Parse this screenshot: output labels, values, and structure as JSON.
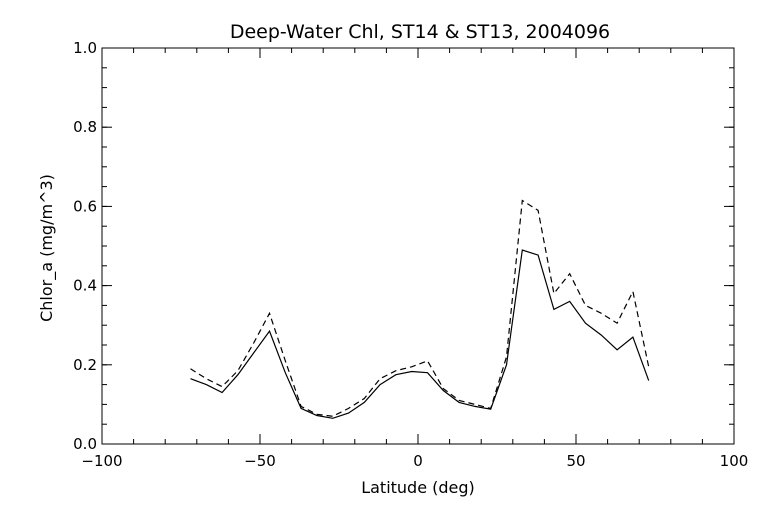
{
  "chart_data": {
    "type": "line",
    "title": "Deep-Water Chl, ST14 & ST13, 2004096",
    "xlabel": "Latitude (deg)",
    "ylabel": "Chlor_a (mg/m^3)",
    "xlim": [
      -100,
      100
    ],
    "ylim": [
      0.0,
      1.0
    ],
    "xticks": [
      -100,
      -50,
      0,
      50,
      100
    ],
    "xtick_labels": [
      "−100",
      "−50",
      "0",
      "50",
      "100"
    ],
    "yticks": [
      0.0,
      0.2,
      0.4,
      0.6,
      0.8,
      1.0
    ],
    "ytick_labels": [
      "0.0",
      "0.2",
      "0.4",
      "0.6",
      "0.8",
      "1.0"
    ],
    "grid": false,
    "series": [
      {
        "style": "solid",
        "color": "#000000",
        "x": [
          -72,
          -67,
          -62,
          -57,
          -52,
          -47,
          -42,
          -37,
          -32,
          -27,
          -22,
          -17,
          -12,
          -7,
          -2,
          3,
          8,
          13,
          18,
          23,
          28,
          33,
          38,
          43,
          48,
          53,
          58,
          63,
          68,
          73
        ],
        "y": [
          0.165,
          0.15,
          0.13,
          0.175,
          0.23,
          0.285,
          0.18,
          0.09,
          0.072,
          0.065,
          0.078,
          0.105,
          0.15,
          0.175,
          0.183,
          0.18,
          0.135,
          0.105,
          0.095,
          0.088,
          0.2,
          0.49,
          0.477,
          0.34,
          0.36,
          0.305,
          0.275,
          0.238,
          0.27,
          0.16
        ]
      },
      {
        "style": "dashed",
        "color": "#000000",
        "x": [
          -72,
          -67,
          -62,
          -57,
          -52,
          -47,
          -42,
          -37,
          -32,
          -27,
          -22,
          -17,
          -12,
          -7,
          -2,
          3,
          8,
          13,
          18,
          23,
          28,
          33,
          38,
          43,
          48,
          53,
          58,
          63,
          68,
          73
        ],
        "y": [
          0.19,
          0.165,
          0.145,
          0.185,
          0.255,
          0.33,
          0.21,
          0.095,
          0.075,
          0.07,
          0.09,
          0.115,
          0.165,
          0.185,
          0.195,
          0.21,
          0.14,
          0.11,
          0.1,
          0.09,
          0.22,
          0.615,
          0.59,
          0.38,
          0.43,
          0.35,
          0.33,
          0.305,
          0.385,
          0.195
        ]
      }
    ]
  }
}
